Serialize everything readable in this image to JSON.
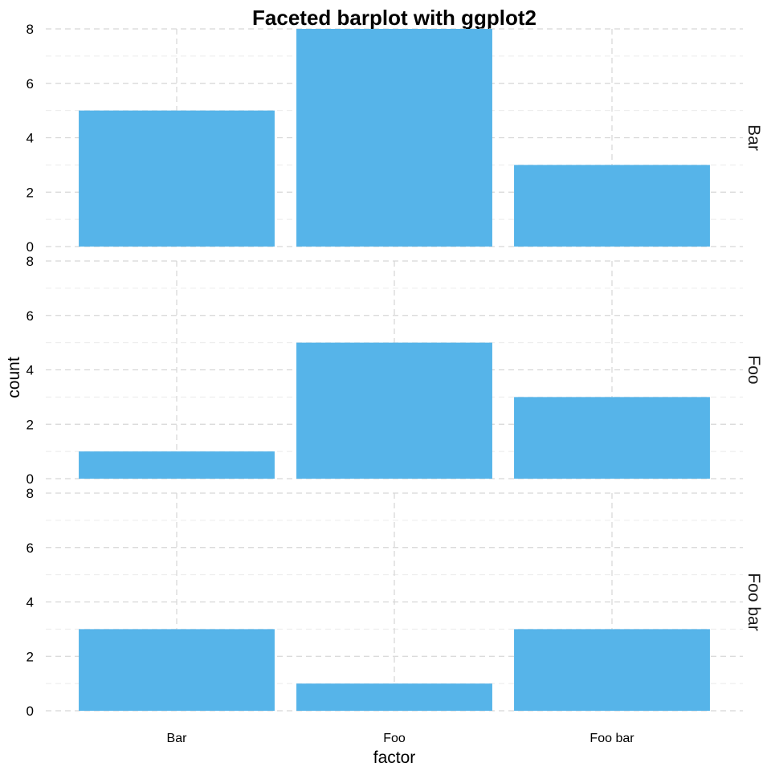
{
  "chart_data": {
    "type": "bar",
    "title": "Faceted barplot with ggplot2",
    "xlabel": "factor",
    "ylabel": "count",
    "categories": [
      "Bar",
      "Foo",
      "Foo bar"
    ],
    "ylim": [
      0,
      8
    ],
    "yticks": [
      "0",
      "2",
      "4",
      "6",
      "8"
    ],
    "grid": true,
    "bar_color": "#56B4E9",
    "facets": [
      {
        "label": "Bar",
        "values": [
          5,
          8,
          3
        ]
      },
      {
        "label": "Foo",
        "values": [
          1,
          5,
          3
        ]
      },
      {
        "label": "Foo bar",
        "values": [
          3,
          1,
          3
        ]
      }
    ]
  }
}
